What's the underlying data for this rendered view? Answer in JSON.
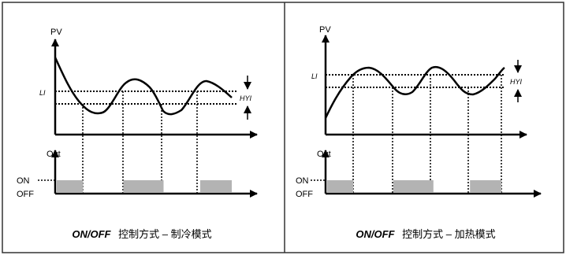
{
  "panels": [
    {
      "id": "cooling",
      "y_axis_label": "PV",
      "setpoint_label": "LI",
      "hysteresis_label": "HYI",
      "out_axis_label": "Out",
      "on_label": "ON",
      "off_label": "OFF",
      "caption_bold": "ON/OFF",
      "caption_text": "控制方式  –  制冷模式",
      "on_segments": [
        [
          0.0,
          0.15
        ],
        [
          0.38,
          0.61
        ],
        [
          0.82,
          1.0
        ]
      ]
    },
    {
      "id": "heating",
      "y_axis_label": "PV",
      "setpoint_label": "LI",
      "hysteresis_label": "HYI",
      "out_axis_label": "Out",
      "on_label": "ON",
      "off_label": "OFF",
      "caption_bold": "ON/OFF",
      "caption_text": "控制方式  –  加热模式",
      "on_segments": [
        [
          0.0,
          0.15
        ],
        [
          0.38,
          0.61
        ],
        [
          0.82,
          1.0
        ]
      ]
    }
  ],
  "colors": {
    "line": "#000000",
    "on_fill": "#b3b3b3",
    "border": "#333333"
  }
}
